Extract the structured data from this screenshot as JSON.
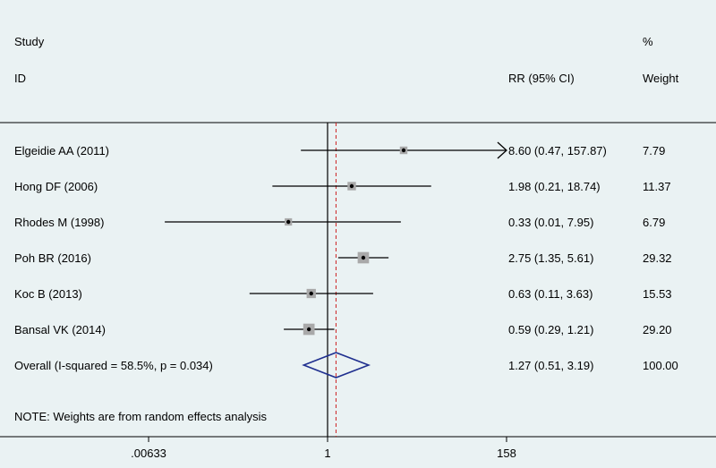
{
  "header": {
    "study_label": "Study",
    "id_label": "ID",
    "rr_label": "RR (95% CI)",
    "pct_label": "%",
    "weight_label": "Weight"
  },
  "footer_note": "NOTE: Weights are from random effects analysis",
  "colors": {
    "background": "#eaf2f3",
    "marker": "#a9a9a9",
    "line": "#000000",
    "diamond": "#1f2f8f",
    "overall_line": "#cc2222"
  },
  "chart_data": {
    "type": "forest",
    "scale": "log",
    "x_reference": 1,
    "x_range": [
      0.00633,
      158
    ],
    "x_ticks": [
      {
        "value": 0.00633,
        "label": ".00633"
      },
      {
        "value": 1,
        "label": "1"
      },
      {
        "value": 158,
        "label": "158"
      }
    ],
    "studies": [
      {
        "id": "Elgeidie AA (2011)",
        "rr": 8.6,
        "lower": 0.47,
        "upper": 157.87,
        "ci_text": "8.60 (0.47, 157.87)",
        "weight": 7.79,
        "weight_text": "7.79",
        "arrow_right": true
      },
      {
        "id": "Hong DF (2006)",
        "rr": 1.98,
        "lower": 0.21,
        "upper": 18.74,
        "ci_text": "1.98 (0.21, 18.74)",
        "weight": 11.37,
        "weight_text": "11.37",
        "arrow_right": false
      },
      {
        "id": "Rhodes M (1998)",
        "rr": 0.33,
        "lower": 0.01,
        "upper": 7.95,
        "ci_text": "0.33 (0.01, 7.95)",
        "weight": 6.79,
        "weight_text": "6.79",
        "arrow_right": false
      },
      {
        "id": "Poh BR (2016)",
        "rr": 2.75,
        "lower": 1.35,
        "upper": 5.61,
        "ci_text": "2.75 (1.35, 5.61)",
        "weight": 29.32,
        "weight_text": "29.32",
        "arrow_right": false
      },
      {
        "id": "Koc B (2013)",
        "rr": 0.63,
        "lower": 0.11,
        "upper": 3.63,
        "ci_text": "0.63 (0.11, 3.63)",
        "weight": 15.53,
        "weight_text": "15.53",
        "arrow_right": false
      },
      {
        "id": "Bansal VK (2014)",
        "rr": 0.59,
        "lower": 0.29,
        "upper": 1.21,
        "ci_text": "0.59 (0.29, 1.21)",
        "weight": 29.2,
        "weight_text": "29.20",
        "arrow_right": false
      }
    ],
    "overall": {
      "label": "Overall  (I-squared = 58.5%, p = 0.034)",
      "rr": 1.27,
      "lower": 0.51,
      "upper": 3.19,
      "ci_text": "1.27 (0.51, 3.19)",
      "weight_text": "100.00"
    }
  }
}
